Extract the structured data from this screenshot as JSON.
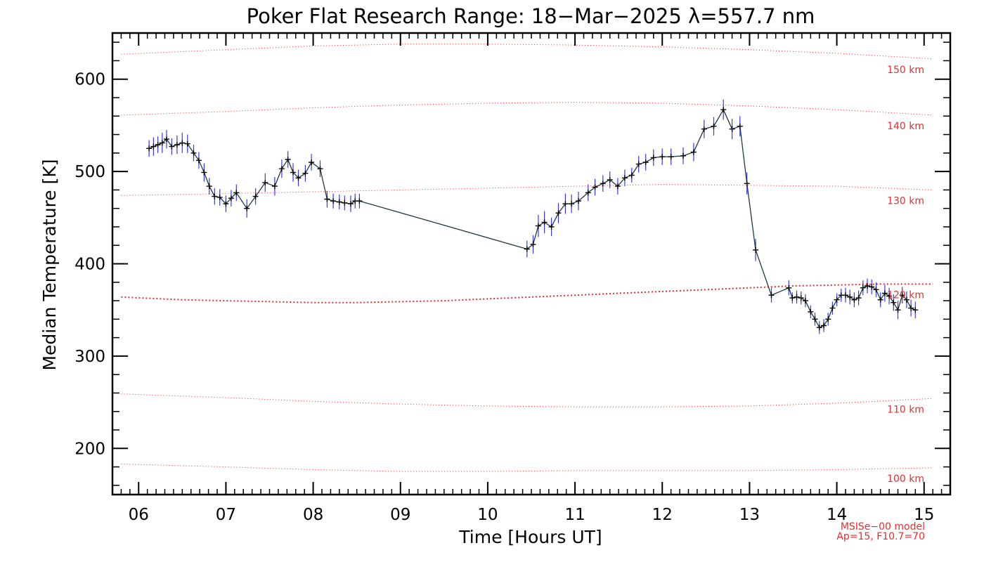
{
  "chart_data": {
    "type": "line",
    "title": "Poker Flat Research Range: 18−Mar−2025 λ=557.7 nm",
    "xlabel": "Time [Hours UT]",
    "ylabel": "Median Temperature [K]",
    "xlim": [
      5.7,
      15.3
    ],
    "ylim": [
      150,
      650
    ],
    "x_ticks": [
      6,
      7,
      8,
      9,
      10,
      11,
      12,
      13,
      14,
      15
    ],
    "x_tick_labels": [
      "06",
      "07",
      "08",
      "09",
      "10",
      "11",
      "12",
      "13",
      "14",
      "15"
    ],
    "y_ticks": [
      200,
      300,
      400,
      500,
      600
    ],
    "y_tick_labels": [
      "200",
      "300",
      "400",
      "500",
      "600"
    ],
    "grid": false,
    "series": [
      {
        "color": "#000000",
        "errorbar_color": "#3a3adf",
        "x": [
          6.12,
          6.17,
          6.22,
          6.27,
          6.32,
          6.38,
          6.44,
          6.5,
          6.56,
          6.63,
          6.69,
          6.75,
          6.81,
          6.87,
          6.93,
          7.0,
          7.06,
          7.12,
          7.24,
          7.34,
          7.45,
          7.56,
          7.64,
          7.71,
          7.77,
          7.83,
          7.91,
          7.98,
          8.08,
          8.16,
          8.23,
          8.3,
          8.36,
          8.43,
          8.48,
          8.53,
          10.45,
          10.52,
          10.58,
          10.65,
          10.73,
          10.81,
          10.89,
          10.96,
          11.04,
          11.15,
          11.23,
          11.32,
          11.4,
          11.49,
          11.57,
          11.65,
          11.73,
          11.81,
          11.9,
          12.0,
          12.1,
          12.24,
          12.36,
          12.48,
          12.59,
          12.7,
          12.8,
          12.89,
          12.97,
          13.07,
          13.25,
          13.45,
          13.49,
          13.54,
          13.59,
          13.64,
          13.7,
          13.75,
          13.8,
          13.85,
          13.9,
          13.95,
          14.0,
          14.05,
          14.1,
          14.15,
          14.2,
          14.25,
          14.3,
          14.35,
          14.4,
          14.45,
          14.5,
          14.55,
          14.6,
          14.65,
          14.7,
          14.75,
          14.8,
          14.85,
          14.9
        ],
        "y": [
          525,
          527,
          529,
          531,
          535,
          527,
          529,
          531,
          530,
          520,
          512,
          499,
          484,
          473,
          472,
          465,
          471,
          477,
          460,
          473,
          488,
          484,
          503,
          513,
          499,
          493,
          498,
          510,
          503,
          470,
          468,
          467,
          466,
          465,
          468,
          468,
          416,
          421,
          441,
          445,
          440,
          455,
          465,
          465,
          468,
          477,
          483,
          487,
          491,
          484,
          493,
          496,
          508,
          510,
          515,
          516,
          516,
          517,
          521,
          546,
          549,
          567,
          546,
          549,
          487,
          415,
          366,
          374,
          363,
          364,
          363,
          360,
          348,
          340,
          331,
          333,
          340,
          352,
          361,
          366,
          366,
          364,
          361,
          363,
          374,
          376,
          375,
          372,
          361,
          368,
          365,
          358,
          350,
          366,
          361,
          352,
          350
        ],
        "yerr": [
          9,
          10,
          9,
          11,
          10,
          9,
          10,
          11,
          10,
          9,
          9,
          10,
          9,
          9,
          9,
          9,
          9,
          9,
          10,
          9,
          10,
          10,
          10,
          9,
          10,
          9,
          9,
          9,
          9,
          9,
          8,
          8,
          8,
          9,
          8,
          8,
          9,
          10,
          12,
          12,
          10,
          11,
          11,
          10,
          10,
          9,
          9,
          9,
          9,
          9,
          9,
          8,
          9,
          9,
          9,
          9,
          9,
          9,
          10,
          10,
          10,
          11,
          11,
          11,
          12,
          12,
          8,
          8,
          6,
          7,
          7,
          7,
          7,
          7,
          7,
          7,
          7,
          7,
          7,
          7,
          8,
          8,
          8,
          8,
          8,
          8,
          8,
          8,
          8,
          9,
          9,
          9,
          10,
          9,
          9,
          9,
          9
        ]
      }
    ],
    "model_curves": [
      {
        "label": "100 km",
        "color": "#e03030",
        "x": [
          5.8,
          7.0,
          8.0,
          9.0,
          10.0,
          11.0,
          12.0,
          13.0,
          14.0,
          15.1
        ],
        "y": [
          183,
          180,
          177,
          175,
          175,
          176,
          176,
          176,
          177,
          179
        ]
      },
      {
        "label": "110 km",
        "color": "#e03030",
        "x": [
          5.8,
          7.0,
          8.0,
          9.0,
          10.0,
          11.0,
          12.0,
          13.0,
          14.0,
          15.1
        ],
        "y": [
          259,
          255,
          251,
          248,
          246,
          245,
          245,
          246,
          249,
          254
        ]
      },
      {
        "label": "120 km",
        "color": "#e03030",
        "x": [
          5.8,
          6.5,
          7.0,
          7.5,
          8.0,
          8.5,
          9.0,
          9.5,
          10.0,
          10.5,
          11.0,
          11.5,
          12.0,
          12.5,
          13.0,
          13.5,
          14.0,
          14.5,
          15.1
        ],
        "y": [
          364,
          361,
          360,
          359,
          358,
          358,
          359,
          360,
          362,
          364,
          366,
          368,
          370,
          372,
          374,
          376,
          377,
          378,
          378
        ]
      },
      {
        "label": "130 km",
        "color": "#e03030",
        "x": [
          5.8,
          7.0,
          8.0,
          9.0,
          10.0,
          11.0,
          12.0,
          13.0,
          14.0,
          15.1
        ],
        "y": [
          474,
          476,
          478,
          480,
          482,
          484,
          486,
          485,
          484,
          480
        ]
      },
      {
        "label": "140 km",
        "color": "#e03030",
        "x": [
          5.8,
          7.0,
          8.0,
          9.0,
          10.0,
          11.0,
          12.0,
          13.0,
          14.0,
          15.1
        ],
        "y": [
          561,
          565,
          569,
          572,
          574,
          575,
          574,
          571,
          567,
          561
        ]
      },
      {
        "label": "150 km",
        "color": "#e03030",
        "x": [
          5.8,
          7.0,
          8.0,
          9.0,
          10.0,
          11.0,
          12.0,
          13.0,
          14.0,
          15.1
        ],
        "y": [
          627,
          632,
          636,
          638,
          638,
          637,
          635,
          632,
          628,
          622
        ]
      }
    ],
    "annotations": [
      "MSISe−00 model",
      "Ap=15, F10.7=70"
    ]
  }
}
